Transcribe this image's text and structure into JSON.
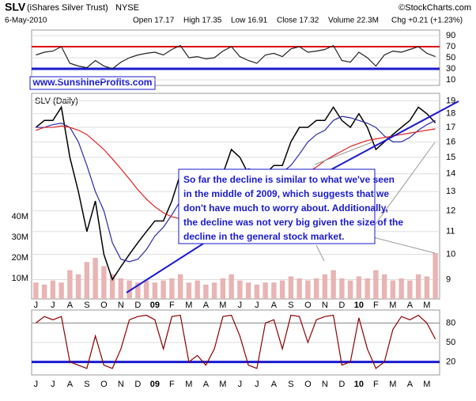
{
  "header": {
    "title": "SLV",
    "subtitle": "(iShares Silver Trust)",
    "exchange": "NYSE",
    "source": "©StockCharts.com",
    "date": "6-May-2010",
    "stats": [
      "Open 17.17",
      "High 17.35",
      "Low 16.91",
      "Close 17.32",
      "Volume 22.3M",
      "Chg +0.21 (+1.23%)"
    ]
  },
  "watermark": "www.SunshineProfits.com",
  "annotation": [
    "So far the decline is similar to what we've seen",
    "in the middle of 2009, which suggests that we",
    "don't have much to worry about. Additionally,",
    "the decline was not very big given the size of the",
    "decline in the general stock market."
  ],
  "chart_data": [
    {
      "type": "line",
      "ylim": [
        0,
        100
      ],
      "yticks": [
        10,
        30,
        50,
        70,
        90
      ],
      "upper_line": 70,
      "lower_line": 30,
      "series": [
        {
          "color": "#222222",
          "values": [
            55,
            60,
            62,
            70,
            40,
            35,
            32,
            45,
            35,
            30,
            42,
            50,
            55,
            58,
            60,
            55,
            65,
            72,
            50,
            52,
            48,
            50,
            62,
            70,
            52,
            45,
            40,
            55,
            58,
            52,
            66,
            70,
            60,
            62,
            65,
            72,
            45,
            42,
            60,
            50,
            35,
            55,
            62,
            60,
            65,
            70,
            58,
            52
          ]
        }
      ]
    },
    {
      "type": "line",
      "title": "SLV (Daily)",
      "log_scale": true,
      "ylim": [
        8.3,
        19.6
      ],
      "yticks": [
        9,
        10,
        11,
        12,
        13,
        14,
        15,
        16,
        17,
        18,
        19
      ],
      "categories": [
        "J",
        null,
        "J",
        null,
        "A",
        null,
        "S",
        null,
        "O",
        null,
        "N",
        null,
        "D",
        null,
        "09",
        null,
        "F",
        null,
        "M",
        null,
        "A",
        null,
        "M",
        null,
        "J",
        null,
        "J",
        null,
        "A",
        null,
        "S",
        null,
        "O",
        null,
        "N",
        null,
        "D",
        null,
        "10",
        null,
        "F",
        null,
        "M",
        null,
        "A",
        null,
        "M",
        null
      ],
      "y2lim": [
        0,
        100
      ],
      "y2ticks": [
        {
          "value": 10,
          "label": "10M"
        },
        {
          "value": 20,
          "label": "20M"
        },
        {
          "value": 30,
          "label": "30M"
        },
        {
          "value": 40,
          "label": "40M"
        }
      ],
      "series": [
        {
          "color": "#000000",
          "values": [
            17,
            17.5,
            17.5,
            18.5,
            15,
            13,
            11,
            12.5,
            10,
            9,
            9.5,
            10,
            10.5,
            11,
            11.5,
            11.5,
            12.5,
            14,
            13,
            13,
            12.5,
            12.5,
            14,
            15.5,
            15,
            14,
            13.5,
            14,
            14.5,
            14.5,
            16,
            17,
            17,
            17.5,
            17.5,
            18.5,
            17.5,
            17,
            18,
            17,
            15.5,
            16,
            16.5,
            17,
            17.5,
            18.5,
            18,
            17.32
          ]
        },
        {
          "color": "#2a2aa8",
          "values": [
            17,
            17,
            17.2,
            17.3,
            17,
            16,
            14.5,
            13,
            12,
            10.5,
            9.8,
            9.7,
            9.8,
            10.2,
            10.8,
            11.2,
            11.8,
            12.5,
            13,
            13.2,
            13,
            12.8,
            13,
            13.5,
            14,
            14.3,
            14.2,
            14,
            14,
            14.1,
            14.5,
            15.2,
            16,
            16.5,
            16.8,
            17.5,
            17.8,
            17.7,
            17.5,
            17.3,
            17,
            16.4,
            16,
            16,
            16.3,
            16.8,
            17.2,
            17.5
          ]
        },
        {
          "color": "#e02020",
          "values": [
            16.8,
            17,
            17,
            17.1,
            17,
            16.8,
            16.5,
            16,
            15.5,
            14.9,
            14.3,
            13.7,
            13.1,
            12.6,
            12.2,
            11.9,
            11.7,
            11.6,
            11.5,
            11.4,
            11.4,
            11.4,
            11.5,
            11.7,
            11.9,
            12.2,
            12.5,
            12.7,
            12.9,
            13.1,
            13.4,
            13.8,
            14.1,
            14.4,
            14.8,
            15.1,
            15.4,
            15.7,
            15.9,
            16.1,
            16.2,
            16.3,
            16.4,
            16.5,
            16.6,
            16.7,
            16.8,
            16.9
          ]
        },
        {
          "type": "bar",
          "axis": "y2",
          "color": "#e8b4b4",
          "values": [
            8,
            7,
            9,
            8,
            14,
            12,
            18,
            20,
            16,
            12,
            10,
            9,
            8,
            9,
            8,
            9,
            10,
            12,
            8,
            9,
            7,
            8,
            10,
            12,
            9,
            8,
            7,
            8,
            8,
            9,
            11,
            10,
            9,
            10,
            12,
            14,
            10,
            9,
            11,
            10,
            14,
            12,
            9,
            10,
            9,
            12,
            11,
            22.3
          ]
        }
      ]
    },
    {
      "type": "line",
      "ylim": [
        0,
        100
      ],
      "yticks": [
        20,
        50,
        80
      ],
      "upper_line": 80,
      "lower_line": 20,
      "series": [
        {
          "color": "#8b0000",
          "values": [
            80,
            90,
            85,
            90,
            20,
            15,
            10,
            60,
            15,
            10,
            40,
            85,
            90,
            92,
            85,
            40,
            90,
            92,
            20,
            30,
            15,
            40,
            90,
            92,
            60,
            15,
            10,
            80,
            85,
            40,
            92,
            90,
            50,
            85,
            90,
            92,
            15,
            20,
            88,
            40,
            10,
            20,
            70,
            90,
            85,
            92,
            80,
            55
          ]
        }
      ]
    }
  ]
}
